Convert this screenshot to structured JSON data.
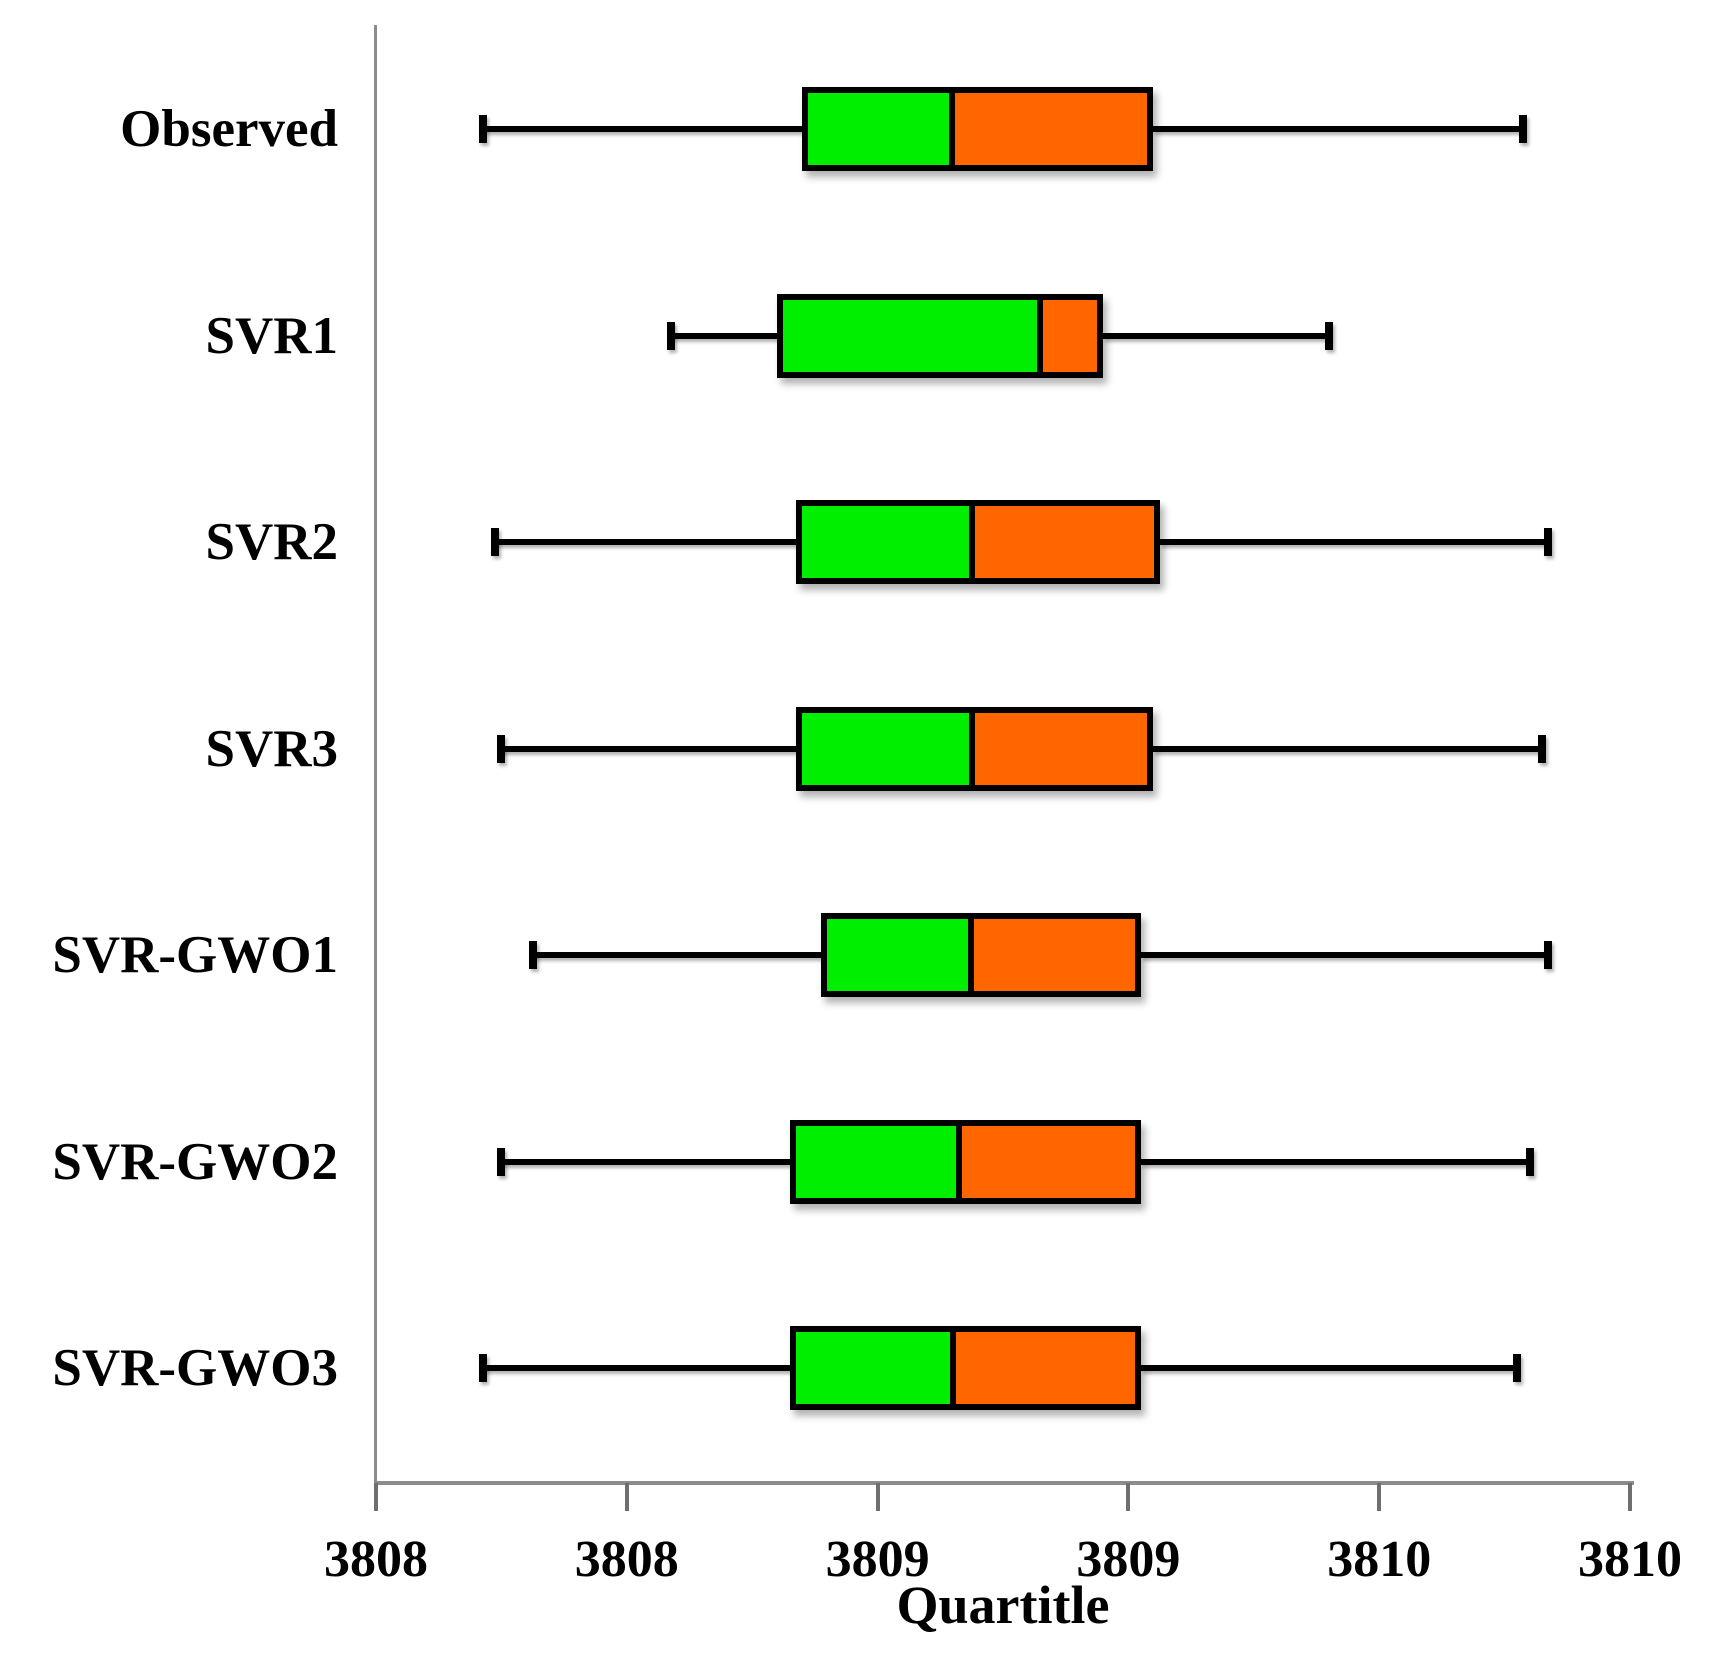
{
  "chart_data": {
    "type": "boxplot",
    "orientation": "horizontal",
    "title": "",
    "xlabel": "Quartitle",
    "ylabel": "",
    "xlim": [
      3808,
      3810
    ],
    "grid": false,
    "legend": "none",
    "x_ticks": [
      {
        "value": 3808.0,
        "label": "3808"
      },
      {
        "value": 3808.4,
        "label": "3808"
      },
      {
        "value": 3808.8,
        "label": "3809"
      },
      {
        "value": 3809.2,
        "label": "3809"
      },
      {
        "value": 3809.6,
        "label": "3810"
      },
      {
        "value": 3810.0,
        "label": "3810"
      }
    ],
    "colors": {
      "lower_quartile_box": "#00EE00",
      "upper_quartile_box": "#FF6600",
      "line": "#000000",
      "axis": "#8C8C8C"
    },
    "series": [
      {
        "label": "Observed",
        "min": 3808.17,
        "q1": 3808.68,
        "median": 3808.92,
        "q3": 3809.24,
        "max": 3809.83
      },
      {
        "label": "SVR1",
        "min": 3808.47,
        "q1": 3808.64,
        "median": 3809.06,
        "q3": 3809.16,
        "max": 3809.52
      },
      {
        "label": "SVR2",
        "min": 3808.19,
        "q1": 3808.67,
        "median": 3808.95,
        "q3": 3809.25,
        "max": 3809.87
      },
      {
        "label": "SVR3",
        "min": 3808.2,
        "q1": 3808.67,
        "median": 3808.95,
        "q3": 3809.24,
        "max": 3809.86
      },
      {
        "label": "SVR-GWO1",
        "min": 3808.25,
        "q1": 3808.71,
        "median": 3808.95,
        "q3": 3809.22,
        "max": 3809.87
      },
      {
        "label": "SVR-GWO2",
        "min": 3808.2,
        "q1": 3808.66,
        "median": 3808.93,
        "q3": 3809.22,
        "max": 3809.84
      },
      {
        "label": "SVR-GWO3",
        "min": 3808.17,
        "q1": 3808.66,
        "median": 3808.92,
        "q3": 3809.22,
        "max": 3809.82
      }
    ]
  }
}
